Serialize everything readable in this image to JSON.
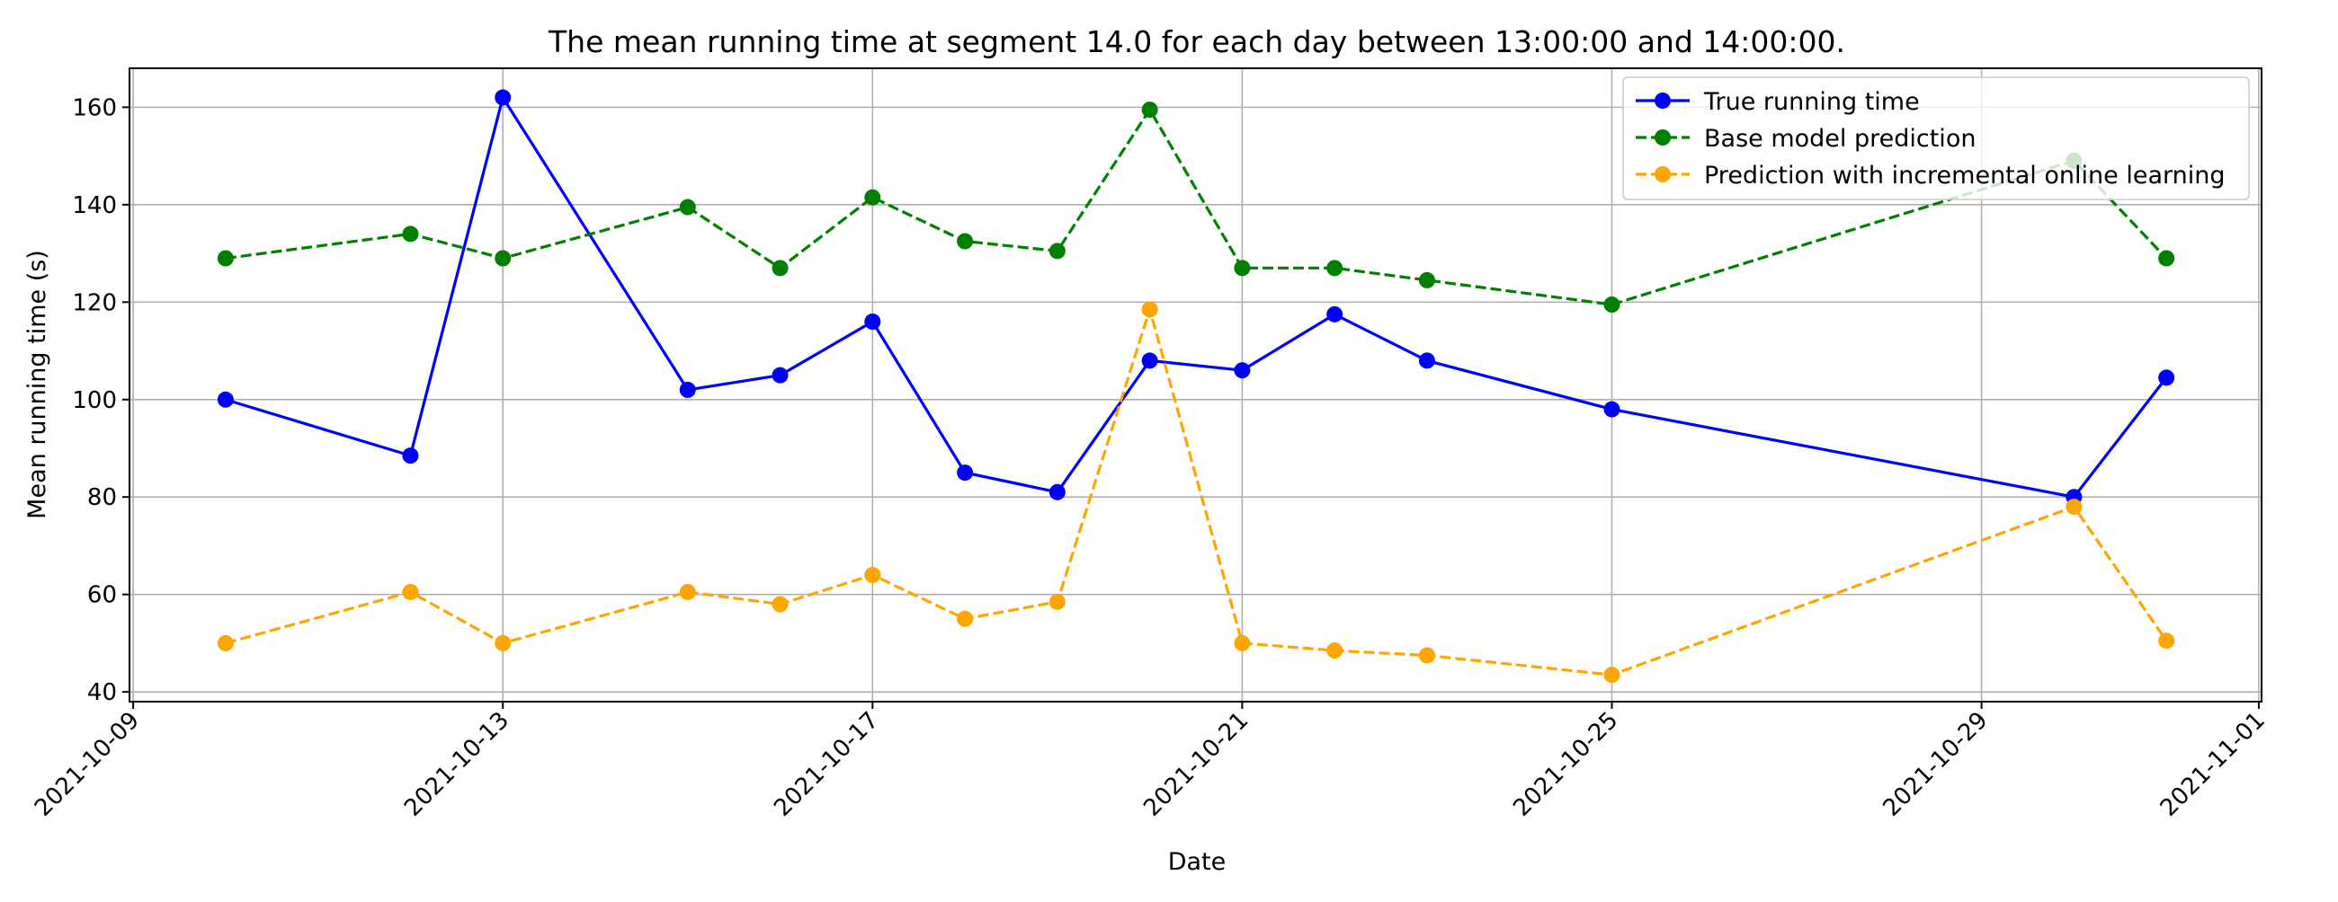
{
  "chart_data": {
    "type": "line",
    "title": "The mean running time at segment 14.0 for each day between 13:00:00 and 14:00:00.",
    "xlabel": "Date",
    "ylabel": "Mean running time (s)",
    "xlim": [
      "2021-10-09",
      "2021-11-01"
    ],
    "ylim": [
      38,
      168
    ],
    "x_ticks": [
      "2021-10-09",
      "2021-10-13",
      "2021-10-17",
      "2021-10-21",
      "2021-10-25",
      "2021-10-29",
      "2021-11-01"
    ],
    "y_ticks": [
      40,
      60,
      80,
      100,
      120,
      140,
      160
    ],
    "grid": true,
    "legend_position": "top-right",
    "x": [
      "2021-10-10",
      "2021-10-12",
      "2021-10-13",
      "2021-10-15",
      "2021-10-16",
      "2021-10-17",
      "2021-10-18",
      "2021-10-19",
      "2021-10-20",
      "2021-10-21",
      "2021-10-22",
      "2021-10-23",
      "2021-10-25",
      "2021-10-30",
      "2021-10-31"
    ],
    "series": [
      {
        "name": "True running time",
        "color": "#0000ff",
        "line_style": "solid",
        "marker": "circle",
        "values": [
          100,
          88.5,
          162,
          102,
          105,
          116,
          85,
          81,
          108,
          106,
          117.5,
          108,
          98,
          80,
          104.5
        ]
      },
      {
        "name": "Base model prediction",
        "color": "#008000",
        "line_style": "dashed",
        "marker": "circle",
        "values": [
          129,
          134,
          129,
          139.5,
          127,
          141.5,
          132.5,
          130.5,
          159.5,
          127,
          127,
          124.5,
          119.5,
          149,
          129
        ]
      },
      {
        "name": "Prediction with incremental online learning",
        "color": "#ffa500",
        "line_style": "dashed",
        "marker": "circle",
        "values": [
          50,
          60.5,
          50,
          60.5,
          58,
          64,
          55,
          58.5,
          118.5,
          50,
          48.5,
          47.5,
          43.5,
          78,
          50.5
        ]
      }
    ]
  }
}
